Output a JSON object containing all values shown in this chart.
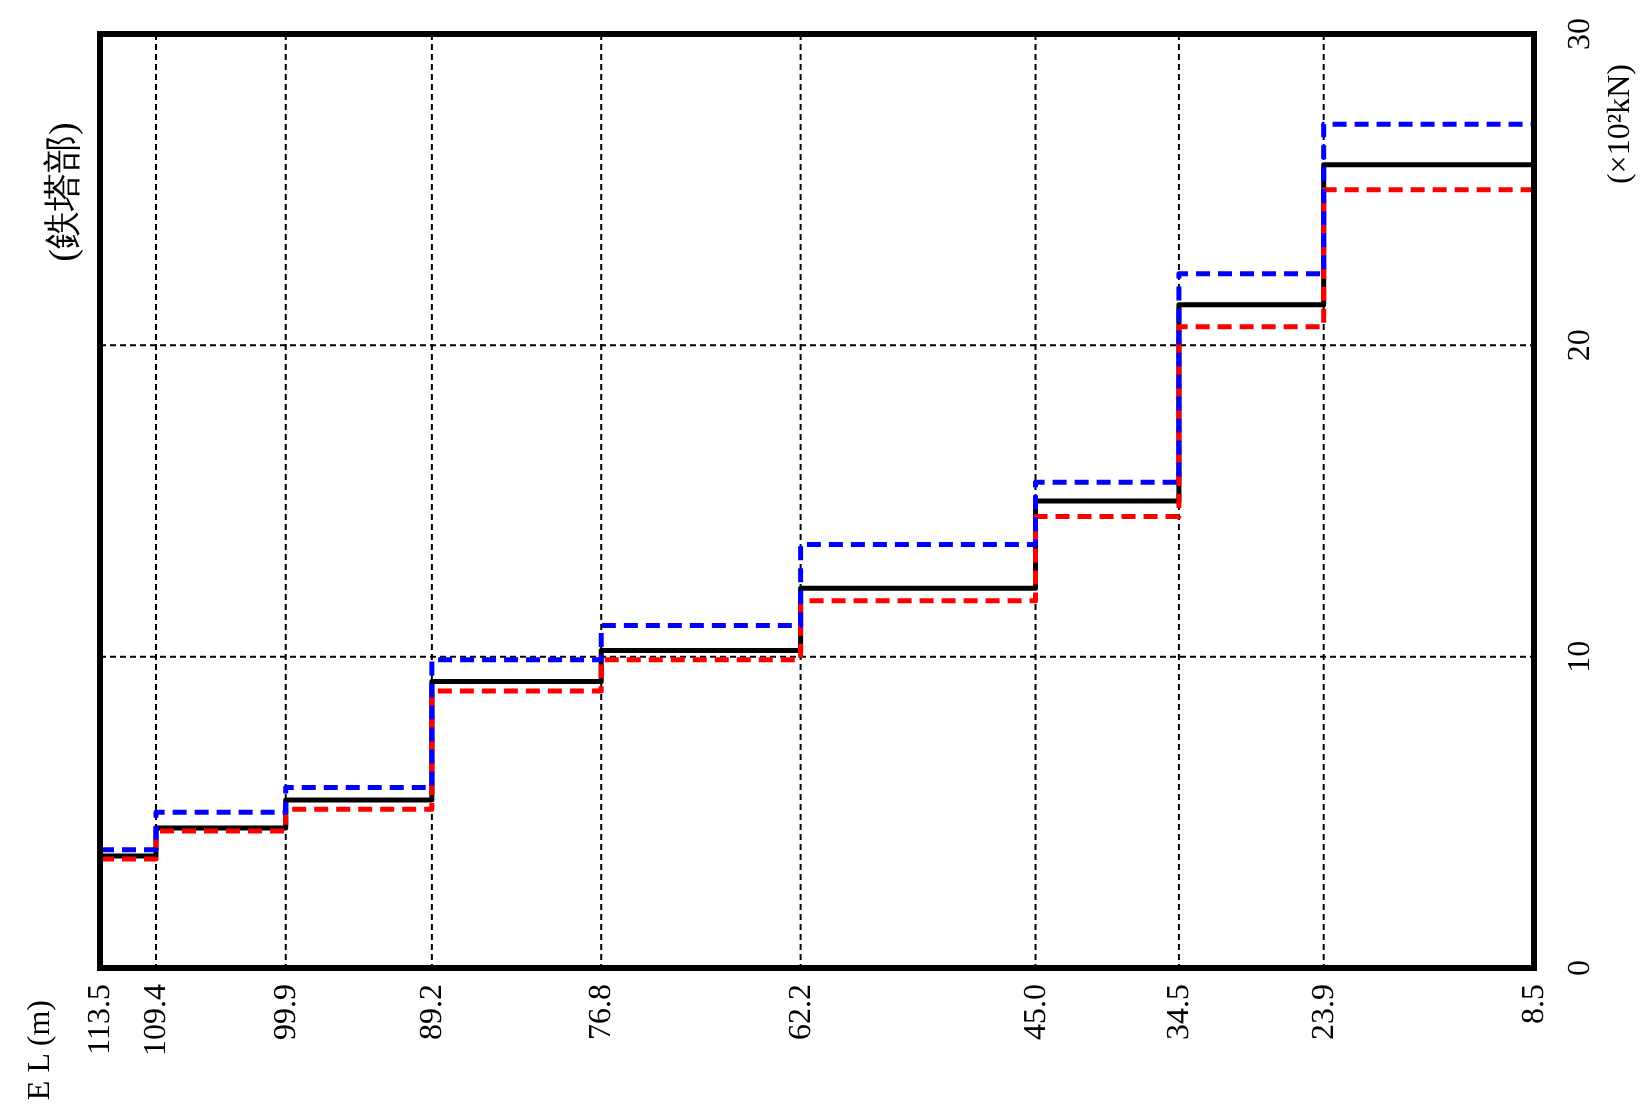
{
  "chart_data": {
    "type": "step",
    "title": "(鉄塔部)",
    "annotations": [
      "E L (m)"
    ],
    "ylabel": "(×10²kN)",
    "x": [
      113.5,
      109.4,
      99.9,
      89.2,
      76.8,
      62.2,
      45.0,
      34.5,
      23.9,
      8.5
    ],
    "xlim": [
      113.5,
      8.5
    ],
    "xticks": [
      113.5,
      109.4,
      99.9,
      89.2,
      76.8,
      62.2,
      {
        "value": 45,
        "label": "45.0"
      },
      34.5,
      23.9,
      8.5
    ],
    "ylim": [
      0,
      30
    ],
    "yticks": [
      0,
      10,
      20,
      30
    ],
    "grid": true,
    "series": [
      {
        "color": "#000000",
        "line_style": "solid",
        "values": [
          3.6,
          4.5,
          5.4,
          9.2,
          10.2,
          12.2,
          15.0,
          21.3,
          25.8,
          25.8
        ]
      },
      {
        "color": "#ff0000",
        "line_style": "dashed",
        "values": [
          3.5,
          4.4,
          5.1,
          8.9,
          9.9,
          11.8,
          14.5,
          20.6,
          25.0,
          25.0
        ]
      },
      {
        "color": "#0000ff",
        "line_style": "dashed",
        "values": [
          3.8,
          5.0,
          5.8,
          9.9,
          11.0,
          13.6,
          15.6,
          22.3,
          27.1,
          27.1
        ]
      }
    ]
  }
}
